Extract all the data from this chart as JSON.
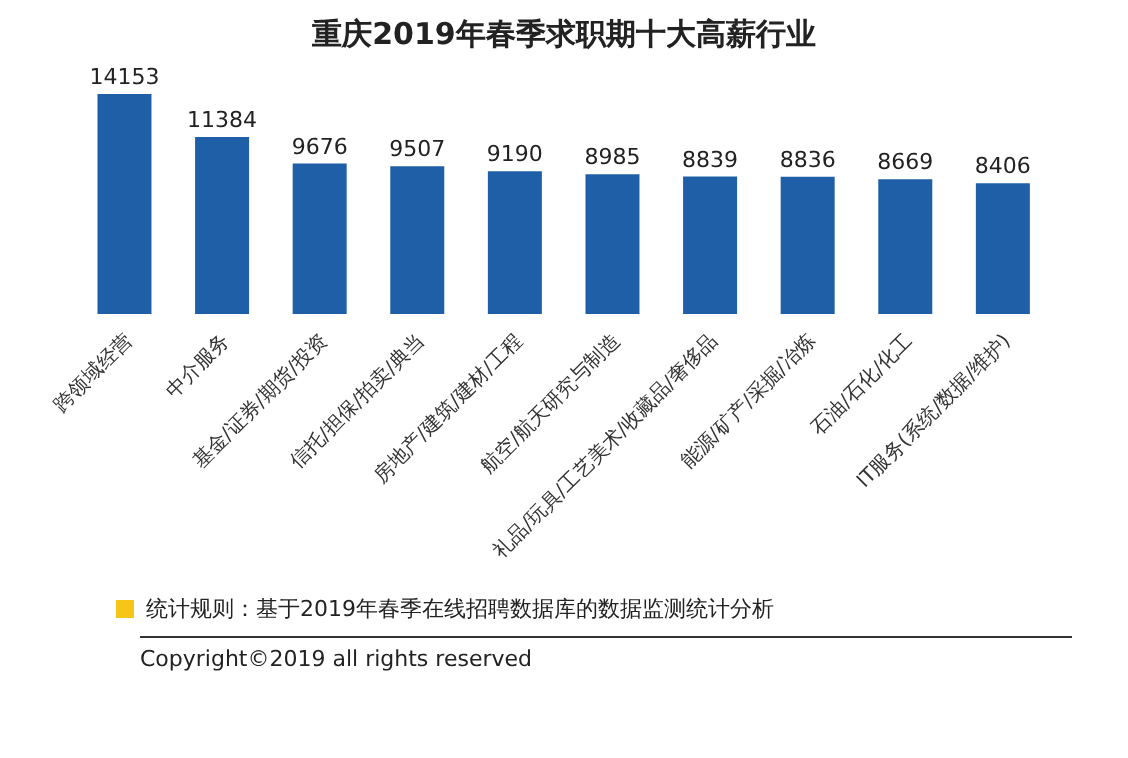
{
  "chart_data": {
    "type": "bar",
    "title": "重庆2019年春季求职期十大高薪行业",
    "categories": [
      "跨领域经营",
      "中介服务",
      "基金/证券/期货/投资",
      "信托/担保/拍卖/典当",
      "房地产/建筑/建材/工程",
      "航空/航天研究与制造",
      "礼品/玩具/工艺美术/收藏品/奢侈品",
      "能源/矿产/采掘/冶炼",
      "石油/石化/化工",
      "IT服务(系统/数据/维护)"
    ],
    "values": [
      14153,
      11384,
      9676,
      9507,
      9190,
      8985,
      8839,
      8836,
      8669,
      8406
    ],
    "color": "#1f5fa8",
    "data_labels": true,
    "annotations": [
      "统计规则：基于2019年春季在线招聘数据库的数据监测统计分析",
      "Copyright©2019 all rights reserved"
    ]
  }
}
